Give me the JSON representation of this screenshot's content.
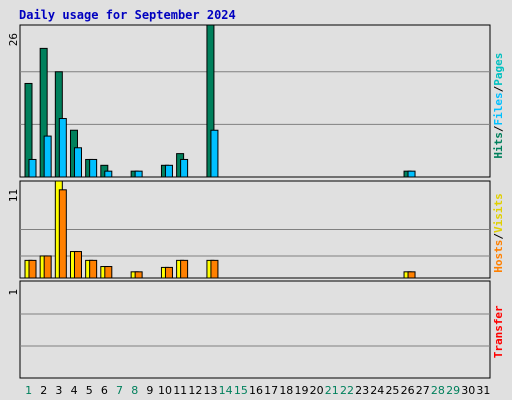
{
  "title": "Daily usage for September 2024",
  "colors": {
    "background": "#e0e0e0",
    "title": "#0000c0",
    "hits": "#00805c",
    "files": "#00c0ff",
    "visits": "#ffff00",
    "hosts": "#ff8000",
    "weekend_label": "#00805c",
    "weekday_label": "#000000"
  },
  "chart_data": [
    {
      "type": "bar",
      "panel": "top",
      "ylabel": [
        "Hits",
        "/",
        "Files",
        "/",
        "Pages"
      ],
      "ymax_label": "26",
      "ylim": [
        0,
        26
      ],
      "gridlines": [
        9,
        18
      ],
      "categories": [
        "1",
        "2",
        "3",
        "4",
        "5",
        "6",
        "7",
        "8",
        "9",
        "10",
        "11",
        "12",
        "13",
        "14",
        "15",
        "16",
        "17",
        "18",
        "19",
        "20",
        "21",
        "22",
        "23",
        "24",
        "25",
        "26",
        "27",
        "28",
        "29",
        "30",
        "31"
      ],
      "series": [
        {
          "name": "Hits",
          "values": [
            16,
            22,
            18,
            8,
            3,
            2,
            0,
            1,
            0,
            2,
            4,
            0,
            26,
            0,
            0,
            0,
            0,
            0,
            0,
            0,
            0,
            0,
            0,
            0,
            0,
            1,
            0,
            0,
            0,
            0,
            0
          ]
        },
        {
          "name": "Files",
          "values": [
            3,
            7,
            10,
            5,
            3,
            1,
            0,
            1,
            0,
            2,
            3,
            0,
            8,
            0,
            0,
            0,
            0,
            0,
            0,
            0,
            0,
            0,
            0,
            0,
            0,
            1,
            0,
            0,
            0,
            0,
            0
          ]
        },
        {
          "name": "Pages",
          "values": [
            0,
            0,
            0,
            0,
            0,
            0,
            0,
            0,
            0,
            0,
            0,
            0,
            0,
            0,
            0,
            0,
            0,
            0,
            0,
            0,
            0,
            0,
            0,
            0,
            0,
            0,
            0,
            0,
            0,
            0,
            0
          ]
        }
      ]
    },
    {
      "type": "bar",
      "panel": "middle",
      "ylabel": [
        "Hosts",
        "/",
        "Visits"
      ],
      "ymax_label": "11",
      "ylim": [
        0,
        11
      ],
      "gridlines": [
        2.5,
        5.5
      ],
      "categories": [
        "1",
        "2",
        "3",
        "4",
        "5",
        "6",
        "7",
        "8",
        "9",
        "10",
        "11",
        "12",
        "13",
        "14",
        "15",
        "16",
        "17",
        "18",
        "19",
        "20",
        "21",
        "22",
        "23",
        "24",
        "25",
        "26",
        "27",
        "28",
        "29",
        "30",
        "31"
      ],
      "series": [
        {
          "name": "Visits",
          "values": [
            2,
            2.5,
            11,
            3,
            2,
            1.3,
            0,
            0.7,
            0,
            1.2,
            2,
            0,
            2,
            0,
            0,
            0,
            0,
            0,
            0,
            0,
            0,
            0,
            0,
            0,
            0,
            0.7,
            0,
            0,
            0,
            0,
            0
          ]
        },
        {
          "name": "Hosts",
          "values": [
            2,
            2.5,
            10,
            3,
            2,
            1.3,
            0,
            0.7,
            0,
            1.2,
            2,
            0,
            2,
            0,
            0,
            0,
            0,
            0,
            0,
            0,
            0,
            0,
            0,
            0,
            0,
            0.7,
            0,
            0,
            0,
            0,
            0
          ]
        }
      ]
    },
    {
      "type": "bar",
      "panel": "bottom",
      "ylabel": [
        "Transfer"
      ],
      "ymax_label": "1",
      "ylim": [
        0,
        1
      ],
      "gridlines": [
        0.33,
        0.66
      ],
      "categories": [
        "1",
        "2",
        "3",
        "4",
        "5",
        "6",
        "7",
        "8",
        "9",
        "10",
        "11",
        "12",
        "13",
        "14",
        "15",
        "16",
        "17",
        "18",
        "19",
        "20",
        "21",
        "22",
        "23",
        "24",
        "25",
        "26",
        "27",
        "28",
        "29",
        "30",
        "31"
      ],
      "series": [
        {
          "name": "Transfer",
          "values": [
            0,
            0,
            0,
            0,
            0,
            0,
            0,
            0,
            0,
            0,
            0,
            0,
            0,
            0,
            0,
            0,
            0,
            0,
            0,
            0,
            0,
            0,
            0,
            0,
            0,
            0,
            0,
            0,
            0,
            0,
            0
          ]
        }
      ]
    }
  ],
  "x_axis": {
    "labels": [
      "1",
      "2",
      "3",
      "4",
      "5",
      "6",
      "7",
      "8",
      "9",
      "10",
      "11",
      "12",
      "13",
      "14",
      "15",
      "16",
      "17",
      "18",
      "19",
      "20",
      "21",
      "22",
      "23",
      "24",
      "25",
      "26",
      "27",
      "28",
      "29",
      "30",
      "31"
    ],
    "weekend_days": [
      1,
      7,
      8,
      14,
      15,
      21,
      22,
      28,
      29
    ]
  }
}
